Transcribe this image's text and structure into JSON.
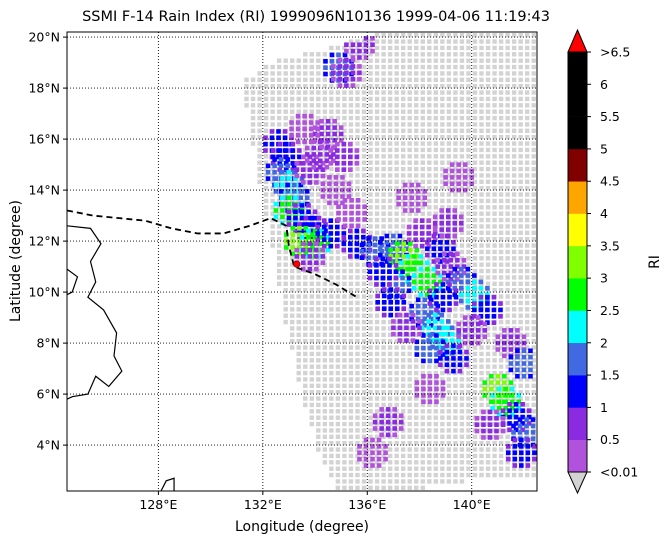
{
  "chart_data": {
    "type": "heatmap",
    "title": "SSMI F-14 Rain Index (RI) 1999096N10136 1999-04-06 11:19:43",
    "xlabel": "Longitude (degree)",
    "ylabel": "Latitude (degree)",
    "xlim": [
      124.5,
      142.5
    ],
    "ylim": [
      2.2,
      20.2
    ],
    "x_ticks": [
      128,
      132,
      136,
      140
    ],
    "x_tick_labels": [
      "128°E",
      "132°E",
      "136°E",
      "140°E"
    ],
    "y_ticks": [
      4,
      6,
      8,
      10,
      12,
      14,
      16,
      18,
      20
    ],
    "y_tick_labels": [
      "4°N",
      "6°N",
      "8°N",
      "10°N",
      "12°N",
      "14°N",
      "16°N",
      "18°N",
      "20°N"
    ],
    "grid": true,
    "colorbar": {
      "label": "RI",
      "levels": [
        0.01,
        0.5,
        1,
        1.5,
        2,
        2.5,
        3,
        3.5,
        4,
        4.5,
        5,
        5.5,
        6,
        6.5
      ],
      "tick_labels": [
        "<0.01",
        "0.5",
        "1",
        "1.5",
        "2",
        "2.5",
        "3",
        "3.5",
        "4",
        "4.5",
        "5",
        "5.5",
        "6",
        ">6.5"
      ],
      "colors": [
        "#b152dc",
        "#8a2be2",
        "#0000ff",
        "#4169e1",
        "#00ffff",
        "#00ff00",
        "#7fff00",
        "#ffff00",
        "#ffa500",
        "#800000",
        "#000000",
        "#000000",
        "#000000"
      ],
      "under_color": "#d3d3d3",
      "over_color": "#ff0000"
    },
    "no_rain_color": "#d3d3d3",
    "swath_boundary": [
      [
        136.8,
        20.2
      ],
      [
        142.5,
        20.2
      ],
      [
        142.5,
        2.7
      ],
      [
        140.0,
        2.6
      ],
      [
        137.3,
        2.2
      ],
      [
        134.8,
        2.2
      ],
      [
        134.2,
        3.5
      ],
      [
        133.5,
        6.0
      ],
      [
        132.8,
        9.0
      ],
      [
        132.4,
        11.5
      ],
      [
        131.9,
        14.0
      ],
      [
        131.5,
        16.5
      ],
      [
        131.2,
        18.2
      ],
      [
        132.0,
        18.9
      ],
      [
        134.5,
        19.6
      ],
      [
        136.8,
        20.2
      ]
    ],
    "rain_cells": [
      [
        132.6,
        15.8,
        1
      ],
      [
        132.9,
        15.3,
        1
      ],
      [
        132.7,
        14.7,
        1.5
      ],
      [
        133.0,
        14.2,
        2
      ],
      [
        133.2,
        13.7,
        1.5
      ],
      [
        133.0,
        13.2,
        2.5
      ],
      [
        133.5,
        12.9,
        1
      ],
      [
        133.9,
        12.4,
        1
      ],
      [
        133.4,
        12.0,
        3
      ],
      [
        134.0,
        11.9,
        2.5
      ],
      [
        134.6,
        12.3,
        1
      ],
      [
        133.8,
        14.8,
        0.5
      ],
      [
        134.2,
        15.4,
        0.5
      ],
      [
        134.5,
        16.2,
        0.5
      ],
      [
        133.6,
        16.4,
        0.01
      ],
      [
        135.1,
        15.3,
        0.5
      ],
      [
        134.8,
        14.0,
        0.01
      ],
      [
        135.4,
        13.1,
        0.01
      ],
      [
        134.9,
        18.8,
        1.5
      ],
      [
        135.2,
        18.6,
        0.5
      ],
      [
        135.7,
        19.7,
        0.5
      ],
      [
        133.8,
        11.4,
        0.5
      ],
      [
        135.6,
        11.9,
        1
      ],
      [
        136.3,
        11.6,
        1.5
      ],
      [
        137.0,
        11.7,
        1.5
      ],
      [
        137.4,
        11.4,
        3
      ],
      [
        137.8,
        10.9,
        2.5
      ],
      [
        138.3,
        10.4,
        2.5
      ],
      [
        137.1,
        10.3,
        1.5
      ],
      [
        136.9,
        9.6,
        1
      ],
      [
        138.2,
        9.2,
        1.5
      ],
      [
        138.6,
        8.6,
        2
      ],
      [
        139.0,
        8.1,
        2
      ],
      [
        138.4,
        7.8,
        1.5
      ],
      [
        139.3,
        7.4,
        1
      ],
      [
        138.1,
        12.3,
        0.5
      ],
      [
        138.8,
        11.7,
        1
      ],
      [
        139.2,
        11.0,
        0.5
      ],
      [
        139.6,
        10.4,
        1.5
      ],
      [
        140.1,
        9.9,
        2
      ],
      [
        140.6,
        9.3,
        1
      ],
      [
        140.0,
        8.5,
        0.5
      ],
      [
        141.5,
        8.0,
        0.5
      ],
      [
        142.0,
        7.2,
        1.5
      ],
      [
        141.0,
        6.2,
        3
      ],
      [
        141.3,
        5.7,
        2.5
      ],
      [
        141.7,
        5.1,
        1
      ],
      [
        142.1,
        4.5,
        1.5
      ],
      [
        141.9,
        3.7,
        1
      ],
      [
        140.7,
        4.8,
        0.5
      ],
      [
        139.1,
        12.7,
        0.5
      ],
      [
        137.7,
        13.7,
        0.01
      ],
      [
        139.5,
        14.5,
        0.01
      ],
      [
        138.4,
        6.2,
        0.01
      ],
      [
        136.8,
        4.9,
        0.5
      ],
      [
        136.2,
        3.7,
        0.01
      ],
      [
        138.9,
        9.8,
        1
      ],
      [
        137.5,
        8.6,
        0.5
      ],
      [
        136.6,
        10.8,
        1
      ]
    ],
    "track": {
      "points": [
        [
          124.5,
          13.2
        ],
        [
          125.5,
          13.0
        ],
        [
          126.5,
          12.9
        ],
        [
          127.5,
          12.8
        ],
        [
          128.5,
          12.5
        ],
        [
          129.5,
          12.3
        ],
        [
          130.5,
          12.3
        ],
        [
          131.5,
          12.6
        ],
        [
          132.3,
          12.9
        ],
        [
          132.9,
          12.6
        ],
        [
          133.0,
          11.8
        ],
        [
          133.2,
          11.0
        ],
        [
          134.0,
          10.7
        ],
        [
          134.8,
          10.3
        ],
        [
          135.6,
          9.8
        ]
      ],
      "current_position": [
        133.3,
        11.1
      ]
    },
    "coastlines": [
      [
        [
          124.5,
          12.6
        ],
        [
          125.4,
          12.5
        ],
        [
          125.8,
          11.9
        ],
        [
          125.4,
          11.2
        ],
        [
          125.6,
          10.4
        ],
        [
          125.3,
          9.8
        ],
        [
          125.9,
          9.3
        ],
        [
          126.4,
          8.4
        ],
        [
          126.3,
          7.5
        ],
        [
          126.6,
          6.9
        ],
        [
          126.1,
          6.3
        ],
        [
          125.6,
          6.7
        ],
        [
          125.3,
          6.0
        ],
        [
          124.7,
          5.9
        ],
        [
          124.5,
          5.8
        ]
      ],
      [
        [
          124.5,
          10.9
        ],
        [
          124.9,
          10.6
        ],
        [
          124.7,
          10.0
        ],
        [
          124.5,
          9.9
        ]
      ],
      [
        [
          128.1,
          2.2
        ],
        [
          128.3,
          2.6
        ],
        [
          128.6,
          2.7
        ],
        [
          128.6,
          2.2
        ]
      ]
    ]
  }
}
